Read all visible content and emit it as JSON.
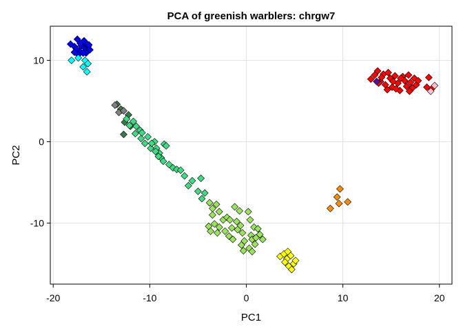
{
  "chart_data": {
    "type": "scatter",
    "title": "PCA of greenish warblers: chrgw7",
    "xlabel": "PC1",
    "ylabel": "PC2",
    "xlim": [
      -20.3,
      21.3
    ],
    "ylim": [
      -17.5,
      14.2
    ],
    "xticks": [
      -20,
      -10,
      0,
      10,
      20
    ],
    "yticks": [
      -10,
      0,
      10
    ],
    "grid": true,
    "marker": "diamond",
    "series": [
      {
        "color": "#0000ff",
        "points": [
          [
            -18.2,
            12.0
          ],
          [
            -17.8,
            11.7
          ],
          [
            -17.5,
            12.6
          ],
          [
            -17.3,
            11.2
          ],
          [
            -17.1,
            11.8
          ],
          [
            -16.9,
            12.3
          ],
          [
            -16.7,
            11.5
          ],
          [
            -16.6,
            10.9
          ],
          [
            -16.4,
            11.7
          ],
          [
            -16.2,
            11.3
          ],
          [
            -16.9,
            10.9
          ],
          [
            -17.6,
            11.4
          ],
          [
            -17.2,
            12.1
          ],
          [
            -16.5,
            12.0
          ],
          [
            -17.8,
            11.0
          ],
          [
            -16.3,
            11.9
          ],
          [
            -17.4,
            10.7
          ],
          [
            -16.8,
            12.4
          ]
        ]
      },
      {
        "color": "#00ffff",
        "points": [
          [
            -18.1,
            10.0
          ],
          [
            -17.4,
            10.3
          ],
          [
            -16.7,
            10.0
          ],
          [
            -16.4,
            9.6
          ],
          [
            -16.9,
            9.2
          ],
          [
            -16.5,
            8.6
          ]
        ]
      },
      {
        "color": "#3a7a4a",
        "points": [
          [
            -13.4,
            4.6
          ],
          [
            -12.9,
            3.9
          ],
          [
            -12.6,
            2.4
          ],
          [
            -12.7,
            0.9
          ],
          [
            -12.2,
            3.3
          ],
          [
            -12.0,
            1.9
          ],
          [
            -13.0,
            4.0
          ]
        ]
      },
      {
        "color": "#808080",
        "points": [
          [
            -13.6,
            4.5
          ],
          [
            -13.2,
            3.6
          ],
          [
            -12.7,
            3.8
          ]
        ]
      },
      {
        "color": "#3ddc84",
        "points": [
          [
            -12.4,
            2.8
          ],
          [
            -12.1,
            2.0
          ],
          [
            -11.7,
            2.5
          ],
          [
            -11.4,
            1.9
          ],
          [
            -11.0,
            1.4
          ],
          [
            -10.9,
            0.4
          ],
          [
            -10.5,
            -0.2
          ],
          [
            -10.2,
            0.6
          ],
          [
            -9.9,
            -0.8
          ],
          [
            -9.5,
            0.0
          ],
          [
            -9.3,
            -0.8
          ],
          [
            -9.0,
            -1.4
          ],
          [
            -8.8,
            -2.0
          ],
          [
            -8.5,
            -0.3
          ],
          [
            -8.6,
            -2.4
          ],
          [
            -9.1,
            -1.8
          ],
          [
            -8.3,
            -0.5
          ],
          [
            -8.0,
            -2.8
          ],
          [
            -7.6,
            -3.2
          ],
          [
            -7.2,
            -3.4
          ],
          [
            -6.8,
            -3.5
          ],
          [
            -6.4,
            -4.2
          ],
          [
            -6.0,
            -5.4
          ],
          [
            -5.6,
            -4.8
          ],
          [
            -5.0,
            -6.1
          ],
          [
            -4.7,
            -4.5
          ],
          [
            -4.3,
            -6.3
          ],
          [
            -4.6,
            -7.0
          ],
          [
            -9.8,
            -0.2
          ],
          [
            -10.8,
            1.1
          ],
          [
            -11.5,
            1.0
          ],
          [
            -9.4,
            -1.2
          ]
        ]
      },
      {
        "color": "#9be35c",
        "points": [
          [
            -3.8,
            -7.5
          ],
          [
            -3.5,
            -8.2
          ],
          [
            -3.1,
            -7.7
          ],
          [
            -2.8,
            -8.6
          ],
          [
            -2.4,
            -9.6
          ],
          [
            -2.8,
            -10.5
          ],
          [
            -3.5,
            -9.0
          ],
          [
            -3.3,
            -10.1
          ],
          [
            -3.9,
            -10.4
          ],
          [
            -3.7,
            -11.0
          ],
          [
            -2.2,
            -11.0
          ],
          [
            -1.8,
            -11.6
          ],
          [
            -1.4,
            -12.0
          ],
          [
            -1.2,
            -8.0
          ],
          [
            -1.0,
            -9.8
          ],
          [
            -0.6,
            -10.3
          ],
          [
            -0.4,
            -11.2
          ],
          [
            -0.2,
            -12.2
          ],
          [
            0.2,
            -8.6
          ],
          [
            0.4,
            -9.6
          ],
          [
            0.5,
            -11.5
          ],
          [
            0.6,
            -12.0
          ],
          [
            0.8,
            -10.5
          ],
          [
            1.0,
            -11.8
          ],
          [
            0.3,
            -13.1
          ],
          [
            -0.3,
            -13.4
          ],
          [
            0.6,
            -13.5
          ],
          [
            -0.9,
            -10.8
          ],
          [
            -1.5,
            -10.6
          ],
          [
            -2.0,
            -9.3
          ],
          [
            -0.7,
            -8.5
          ],
          [
            1.4,
            -11.4
          ],
          [
            1.7,
            -12.0
          ],
          [
            -3.0,
            -11.2
          ],
          [
            0.9,
            -12.6
          ],
          [
            -0.5,
            -12.7
          ],
          [
            1.2,
            -10.7
          ],
          [
            -1.7,
            -9.6
          ]
        ]
      },
      {
        "color": "#ffff00",
        "points": [
          [
            3.5,
            -14.1
          ],
          [
            3.9,
            -13.8
          ],
          [
            4.2,
            -14.4
          ],
          [
            4.4,
            -15.3
          ],
          [
            4.6,
            -14.0
          ],
          [
            4.9,
            -15.0
          ],
          [
            4.7,
            -15.7
          ],
          [
            4.3,
            -13.5
          ],
          [
            4.0,
            -14.8
          ],
          [
            5.1,
            -14.6
          ]
        ]
      },
      {
        "color": "#ff8c00",
        "points": [
          [
            9.7,
            -5.8
          ],
          [
            9.4,
            -6.8
          ],
          [
            9.6,
            -7.6
          ],
          [
            10.5,
            -7.4
          ],
          [
            8.7,
            -8.2
          ]
        ]
      },
      {
        "color": "#ff0000",
        "points": [
          [
            12.9,
            7.7
          ],
          [
            13.3,
            8.2
          ],
          [
            13.6,
            8.7
          ],
          [
            13.9,
            7.4
          ],
          [
            14.2,
            8.3
          ],
          [
            14.4,
            7.0
          ],
          [
            14.7,
            8.5
          ],
          [
            14.9,
            7.8
          ],
          [
            15.1,
            6.7
          ],
          [
            15.4,
            8.1
          ],
          [
            15.7,
            7.2
          ],
          [
            15.9,
            6.3
          ],
          [
            16.2,
            8.0
          ],
          [
            16.4,
            7.5
          ],
          [
            16.6,
            6.8
          ],
          [
            16.8,
            8.2
          ],
          [
            17.0,
            7.3
          ],
          [
            17.2,
            6.6
          ],
          [
            17.4,
            7.8
          ],
          [
            17.6,
            7.0
          ],
          [
            17.8,
            7.5
          ],
          [
            14.0,
            7.9
          ],
          [
            15.2,
            7.4
          ],
          [
            16.0,
            7.8
          ],
          [
            13.7,
            7.2
          ],
          [
            16.9,
            6.2
          ],
          [
            15.5,
            6.5
          ],
          [
            14.6,
            6.4
          ],
          [
            18.9,
            7.9
          ],
          [
            18.7,
            6.7
          ],
          [
            19.2,
            6.5
          ]
        ]
      },
      {
        "color": "#5a0da8",
        "points": [
          [
            13.5,
            7.4
          ]
        ]
      },
      {
        "color": "#ffc0cb",
        "points": [
          [
            19.1,
            6.2
          ],
          [
            19.5,
            6.9
          ]
        ]
      }
    ]
  }
}
